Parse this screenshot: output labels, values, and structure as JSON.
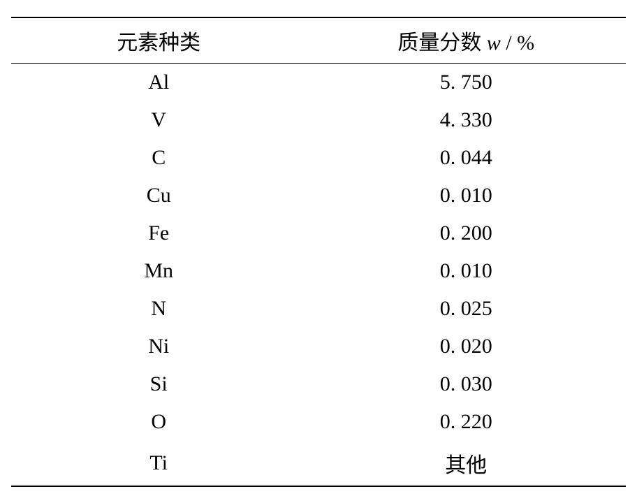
{
  "table": {
    "type": "table",
    "background_color": "#ffffff",
    "border_color": "#000000",
    "border_top_width": 2.5,
    "header_border_bottom_width": 1.5,
    "border_bottom_width": 2.5,
    "header_fontsize": 30,
    "body_fontsize": 30,
    "text_color": "#000000",
    "font_family_cjk": "SimSun",
    "font_family_latin": "Times New Roman",
    "columns": [
      {
        "key": "element",
        "label": "元素种类",
        "width_pct": 48,
        "align": "center"
      },
      {
        "key": "mass_fraction",
        "label_prefix": "质量分数 ",
        "label_italic": "w",
        "label_suffix": " / %",
        "width_pct": 52,
        "align": "center"
      }
    ],
    "rows": [
      {
        "element": "Al",
        "value": "5. 750",
        "value_is_cjk": false
      },
      {
        "element": "V",
        "value": "4. 330",
        "value_is_cjk": false
      },
      {
        "element": "C",
        "value": "0. 044",
        "value_is_cjk": false
      },
      {
        "element": "Cu",
        "value": "0. 010",
        "value_is_cjk": false
      },
      {
        "element": "Fe",
        "value": "0. 200",
        "value_is_cjk": false
      },
      {
        "element": "Mn",
        "value": "0. 010",
        "value_is_cjk": false
      },
      {
        "element": "N",
        "value": "0. 025",
        "value_is_cjk": false
      },
      {
        "element": "Ni",
        "value": "0. 020",
        "value_is_cjk": false
      },
      {
        "element": "Si",
        "value": "0. 030",
        "value_is_cjk": false
      },
      {
        "element": "O",
        "value": "0. 220",
        "value_is_cjk": false
      },
      {
        "element": "Ti",
        "value": "其他",
        "value_is_cjk": true
      }
    ]
  }
}
